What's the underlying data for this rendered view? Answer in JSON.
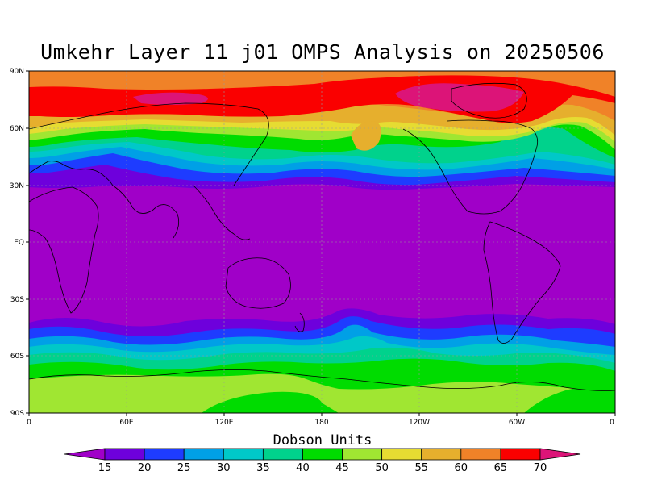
{
  "title": "Umkehr Layer 11 j01 OMPS Analysis on 20250506",
  "lat_ticks": [
    "90N",
    "60N",
    "30N",
    "EQ",
    "30S",
    "60S",
    "90S"
  ],
  "lon_ticks": [
    "0",
    "60E",
    "120E",
    "180",
    "120W",
    "60W",
    "0"
  ],
  "colorbar": {
    "title": "Dobson Units",
    "levels": [
      "15",
      "20",
      "25",
      "30",
      "35",
      "40",
      "45",
      "50",
      "55",
      "60",
      "65",
      "70"
    ],
    "colors": [
      "#a000c8",
      "#6e00dc",
      "#1e3cff",
      "#00a0e6",
      "#00c8c8",
      "#00d28c",
      "#00dc00",
      "#a0e632",
      "#e6dc32",
      "#e6af2d",
      "#f08228",
      "#fa0000",
      "#dc1478"
    ]
  },
  "map_colors": {
    "ocean_land_line": "#000000",
    "grid": "#999999"
  }
}
